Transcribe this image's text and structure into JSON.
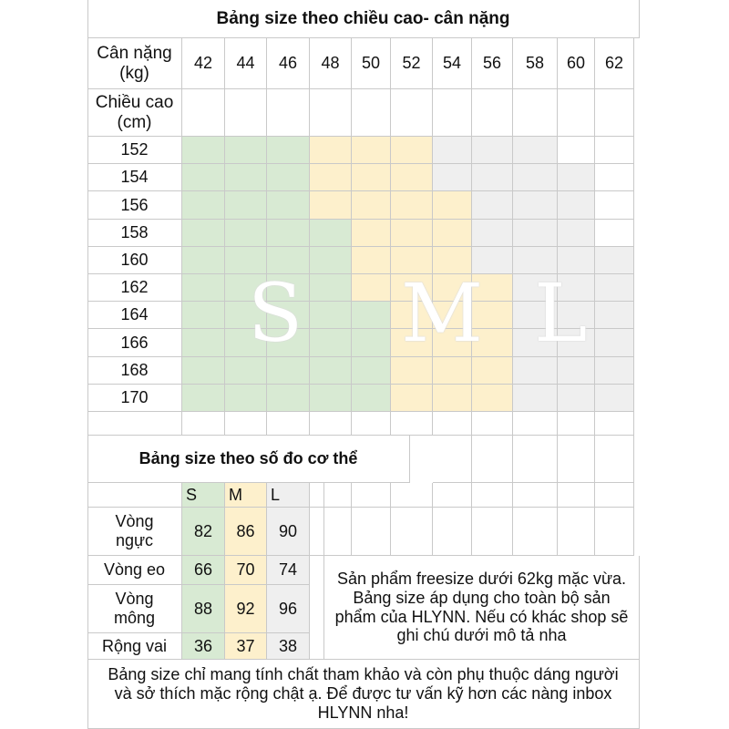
{
  "title_height": "Bảng size theo chiều cao- cân nặng",
  "weight_label": "Cân nặng (kg)",
  "height_label": "Chiều cao (cm)",
  "weights": [
    "42",
    "44",
    "46",
    "48",
    "50",
    "52",
    "54",
    "56",
    "58",
    "60",
    "62"
  ],
  "heights": [
    "152",
    "154",
    "156",
    "158",
    "160",
    "162",
    "164",
    "166",
    "168",
    "170"
  ],
  "size_grid": [
    [
      "S",
      "S",
      "S",
      "M",
      "M",
      "M",
      "L",
      "L",
      "L",
      "",
      ""
    ],
    [
      "S",
      "S",
      "S",
      "M",
      "M",
      "M",
      "L",
      "L",
      "L",
      "L",
      ""
    ],
    [
      "S",
      "S",
      "S",
      "M",
      "M",
      "M",
      "M",
      "L",
      "L",
      "L",
      ""
    ],
    [
      "S",
      "S",
      "S",
      "S",
      "M",
      "M",
      "M",
      "L",
      "L",
      "L",
      ""
    ],
    [
      "S",
      "S",
      "S",
      "S",
      "M",
      "M",
      "M",
      "L",
      "L",
      "L",
      "L"
    ],
    [
      "S",
      "S",
      "S",
      "S",
      "M",
      "M",
      "M",
      "M",
      "L",
      "L",
      "L"
    ],
    [
      "S",
      "S",
      "S",
      "S",
      "S",
      "M",
      "M",
      "M",
      "L",
      "L",
      "L"
    ],
    [
      "S",
      "S",
      "S",
      "S",
      "S",
      "M",
      "M",
      "M",
      "L",
      "L",
      "L"
    ],
    [
      "S",
      "S",
      "S",
      "S",
      "S",
      "M",
      "M",
      "M",
      "L",
      "L",
      "L"
    ],
    [
      "S",
      "S",
      "S",
      "S",
      "S",
      "M",
      "M",
      "M",
      "L",
      "L",
      "L"
    ]
  ],
  "zone_labels": {
    "s": "S",
    "m": "M",
    "l": "L"
  },
  "colors": {
    "S": "#d8ead3",
    "M": "#fdf0cc",
    "L": "#efefef",
    "grid": "#c9c9c9"
  },
  "title_body": "Bảng size theo số đo cơ thể",
  "body_sizes": [
    "S",
    "M",
    "L"
  ],
  "body_rows": [
    {
      "label": "Vòng ngực",
      "values": [
        "82",
        "86",
        "90"
      ]
    },
    {
      "label": "Vòng eo",
      "values": [
        "66",
        "70",
        "74"
      ]
    },
    {
      "label": "Vòng mông",
      "values": [
        "88",
        "92",
        "96"
      ]
    },
    {
      "label": "Rộng vai",
      "values": [
        "36",
        "37",
        "38"
      ]
    }
  ],
  "freesize_note": "Sản phẩm freesize dưới 62kg mặc vừa. Bảng size áp dụng cho toàn bộ sản phẩm của HLYNN. Nếu có khác shop sẽ ghi chú dưới mô tả nha",
  "footer_note": "Bảng size chỉ mang tính chất tham khảo và còn phụ thuộc dáng người và sở thích mặc rộng chật ạ.  Để được tư vấn kỹ hơn các nàng inbox HLYNN nha!"
}
